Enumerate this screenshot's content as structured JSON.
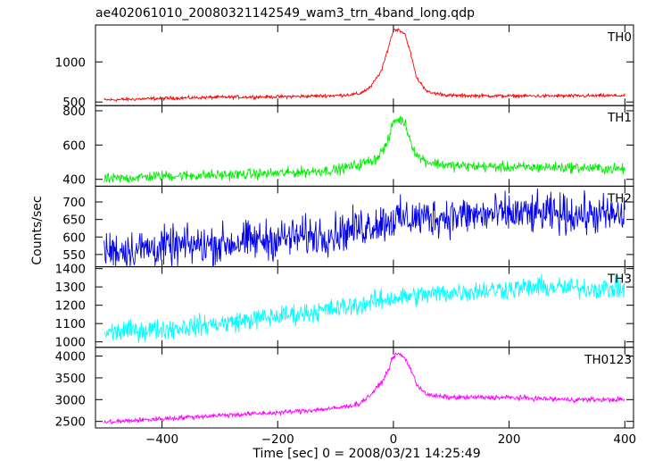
{
  "title": "ae402061010_20080321142549_wam3_trn_4band_long.qdp",
  "xlabel": "Time [sec] 0 = 2008/03/21 14:25:49",
  "ylabel": "Counts/sec",
  "chart_data": {
    "type": "line",
    "title": "ae402061010_20080321142549_wam3_trn_4band_long.qdp",
    "xlabel": "Time [sec] 0 = 2008/03/21 14:25:49",
    "ylabel": "Counts/sec",
    "xlim": [
      -515,
      415
    ],
    "xticks": [
      -400,
      -200,
      0,
      200,
      400
    ],
    "grid": false,
    "panels": [
      {
        "name": "TH0",
        "color": "#ff0000",
        "ylim": [
          455,
          1460
        ],
        "yticks": [
          500,
          1000
        ],
        "x": [
          -500,
          -400,
          -300,
          -200,
          -100,
          -60,
          -40,
          -20,
          -10,
          0,
          10,
          20,
          30,
          40,
          60,
          100,
          200,
          300,
          400
        ],
        "y": [
          525,
          545,
          560,
          565,
          580,
          600,
          680,
          900,
          1150,
          1400,
          1400,
          1350,
          1100,
          800,
          620,
          580,
          575,
          575,
          580
        ],
        "noise": 15
      },
      {
        "name": "TH1",
        "color": "#00ee00",
        "ylim": [
          360,
          830
        ],
        "yticks": [
          400,
          600,
          800
        ],
        "x": [
          -500,
          -400,
          -300,
          -200,
          -100,
          -60,
          -30,
          -10,
          0,
          10,
          20,
          30,
          40,
          60,
          100,
          200,
          300,
          400
        ],
        "y": [
          400,
          420,
          425,
          435,
          455,
          485,
          520,
          610,
          740,
          750,
          730,
          620,
          540,
          500,
          480,
          470,
          470,
          460
        ],
        "noise": 22
      },
      {
        "name": "TH2",
        "color": "#0000ee",
        "ylim": [
          515,
          745
        ],
        "yticks": [
          550,
          600,
          650,
          700
        ],
        "x": [
          -500,
          -400,
          -300,
          -200,
          -100,
          -50,
          0,
          50,
          100,
          200,
          300,
          400
        ],
        "y": [
          560,
          570,
          580,
          595,
          610,
          630,
          650,
          655,
          660,
          665,
          665,
          660
        ],
        "noise": 40
      },
      {
        "name": "TH3",
        "color": "#00ffff",
        "ylim": [
          970,
          1410
        ],
        "yticks": [
          1000,
          1100,
          1200,
          1300,
          1400
        ],
        "x": [
          -500,
          -400,
          -300,
          -200,
          -100,
          0,
          100,
          200,
          250,
          300,
          400
        ],
        "y": [
          1050,
          1070,
          1100,
          1140,
          1180,
          1240,
          1270,
          1290,
          1300,
          1295,
          1290
        ],
        "noise": 40
      },
      {
        "name": "TH0123",
        "color": "#ff00ff",
        "ylim": [
          2350,
          4200
        ],
        "yticks": [
          2500,
          3000,
          3500,
          4000
        ],
        "x": [
          -500,
          -400,
          -300,
          -200,
          -100,
          -60,
          -40,
          -20,
          -10,
          0,
          10,
          20,
          30,
          40,
          60,
          100,
          200,
          300,
          400
        ],
        "y": [
          2480,
          2560,
          2640,
          2700,
          2800,
          2900,
          3100,
          3400,
          3650,
          4000,
          4050,
          3950,
          3700,
          3350,
          3100,
          3050,
          3050,
          3000,
          3000
        ],
        "noise": 40
      }
    ]
  }
}
